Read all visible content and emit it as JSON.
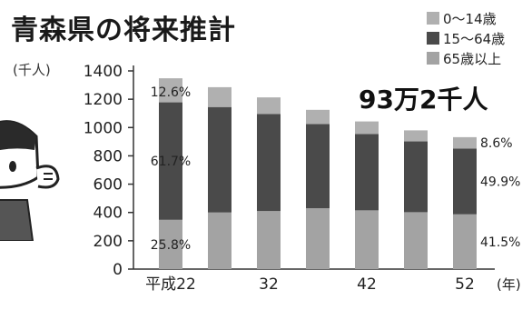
{
  "title": "青森県の将来推計",
  "unit_label": "(千人)",
  "callout": "93万2千人",
  "colors": {
    "age_0_14": "#b0b0b0",
    "age_15_64": "#4a4a4a",
    "age_65_plus": "#a3a3a3",
    "axis": "#333333"
  },
  "chart_data": {
    "type": "bar",
    "stacked": true,
    "ylim": [
      0,
      1400
    ],
    "yticks": [
      0,
      200,
      400,
      600,
      800,
      1000,
      1200,
      1400
    ],
    "categories": [
      "平成22",
      "",
      "32",
      "",
      "42",
      "",
      "52"
    ],
    "x_suffix": "(年)",
    "series": [
      {
        "name": "65歳以上",
        "values": [
          348,
          400,
          410,
          430,
          415,
          402,
          387
        ]
      },
      {
        "name": "15～64歳",
        "values": [
          830,
          745,
          685,
          595,
          540,
          500,
          465
        ]
      },
      {
        "name": "0～14歳",
        "values": [
          170,
          140,
          118,
          100,
          88,
          78,
          80
        ]
      }
    ],
    "data_labels": [
      {
        "text": "12.6%",
        "bar": 0,
        "segment": 2
      },
      {
        "text": "61.7%",
        "bar": 0,
        "segment": 1
      },
      {
        "text": "25.8%",
        "bar": 0,
        "segment": 0
      },
      {
        "text": "8.6%",
        "bar": 6,
        "segment": 2
      },
      {
        "text": "49.9%",
        "bar": 6,
        "segment": 1
      },
      {
        "text": "41.5%",
        "bar": 6,
        "segment": 0
      }
    ],
    "legend_order": [
      "0～14歳",
      "15～64歳",
      "65歳以上"
    ]
  }
}
